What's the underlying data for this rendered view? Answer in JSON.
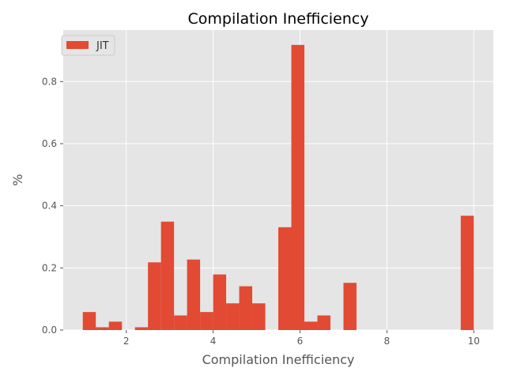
{
  "chart_data": {
    "type": "bar",
    "title": "Compilation Inefficiency",
    "xlabel": "Compilation Inefficiency",
    "ylabel": "%",
    "xlim": [
      0.55,
      10.45
    ],
    "ylim": [
      0,
      0.966
    ],
    "xticks": [
      2,
      4,
      6,
      8,
      10
    ],
    "yticks": [
      0.0,
      0.2,
      0.4,
      0.6,
      0.8
    ],
    "grid": true,
    "legend": "top-left",
    "colors": {
      "bar": "#E24A33",
      "plot_bg": "#E5E5E5",
      "grid": "#FFFFFF"
    },
    "series": [
      {
        "name": "JIT",
        "bins": [
          {
            "x0": 1.0,
            "x1": 1.3,
            "value": 0.058
          },
          {
            "x0": 1.3,
            "x1": 1.6,
            "value": 0.009
          },
          {
            "x0": 1.6,
            "x1": 1.9,
            "value": 0.027
          },
          {
            "x0": 1.9,
            "x1": 2.2,
            "value": 0.0
          },
          {
            "x0": 2.2,
            "x1": 2.5,
            "value": 0.009
          },
          {
            "x0": 2.5,
            "x1": 2.8,
            "value": 0.218
          },
          {
            "x0": 2.8,
            "x1": 3.1,
            "value": 0.349
          },
          {
            "x0": 3.1,
            "x1": 3.4,
            "value": 0.047
          },
          {
            "x0": 3.4,
            "x1": 3.7,
            "value": 0.227
          },
          {
            "x0": 3.7,
            "x1": 4.0,
            "value": 0.058
          },
          {
            "x0": 4.0,
            "x1": 4.3,
            "value": 0.179
          },
          {
            "x0": 4.3,
            "x1": 4.6,
            "value": 0.086
          },
          {
            "x0": 4.6,
            "x1": 4.9,
            "value": 0.141
          },
          {
            "x0": 4.9,
            "x1": 5.2,
            "value": 0.086
          },
          {
            "x0": 5.2,
            "x1": 5.5,
            "value": 0.0
          },
          {
            "x0": 5.5,
            "x1": 5.8,
            "value": 0.331
          },
          {
            "x0": 5.8,
            "x1": 6.1,
            "value": 0.918
          },
          {
            "x0": 6.1,
            "x1": 6.4,
            "value": 0.027
          },
          {
            "x0": 6.4,
            "x1": 6.7,
            "value": 0.047
          },
          {
            "x0": 6.7,
            "x1": 7.0,
            "value": 0.0
          },
          {
            "x0": 7.0,
            "x1": 7.3,
            "value": 0.152
          },
          {
            "x0": 7.3,
            "x1": 9.7,
            "value": 0.0
          },
          {
            "x0": 9.7,
            "x1": 10.0,
            "value": 0.368
          }
        ]
      }
    ]
  }
}
